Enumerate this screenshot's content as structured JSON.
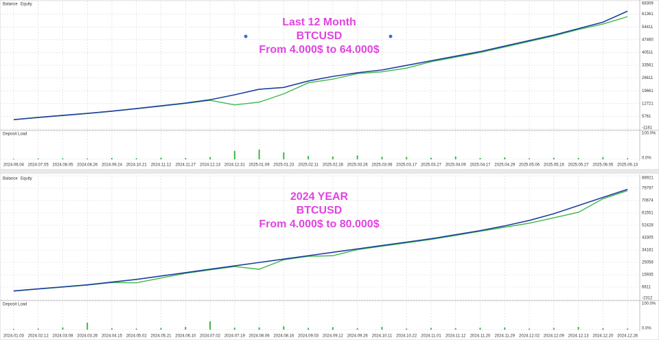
{
  "chart_data": [
    {
      "type": "line",
      "legend": [
        "Balance",
        "Equity"
      ],
      "sub_title": "Deposit Load",
      "annotations": [
        "Last 12 Month",
        "BTCUSD",
        "From 4.000$ to 64.000$"
      ],
      "categories": [
        "2024.06.04",
        "2024.07.05",
        "2024.08.05",
        "2024.08.26",
        "2024.09.24",
        "2024.10.21",
        "2024.11.12",
        "2024.11.27",
        "2024.12.13",
        "2024.12.31",
        "2025.01.09",
        "2025.01.23",
        "2025.02.11",
        "2025.02.28",
        "2025.03.26",
        "2025.03.06",
        "2025.03.17",
        "2025.03.27",
        "2025.04.09",
        "2025.04.17",
        "2025.04.29",
        "2025.05.06",
        "2025.05.16",
        "2025.05.27",
        "2025.06.05",
        "2025.06.13"
      ],
      "series": [
        {
          "name": "Balance",
          "color": "#1c3f9c",
          "values": [
            4000,
            5200,
            6300,
            7400,
            8600,
            10000,
            11500,
            13000,
            14800,
            17500,
            20500,
            21500,
            25000,
            27500,
            29500,
            31000,
            33500,
            36000,
            38500,
            41000,
            44000,
            47000,
            50000,
            53500,
            57000,
            63000
          ]
        },
        {
          "name": "Equity",
          "color": "#3db54a",
          "values": [
            3900,
            5100,
            6200,
            7300,
            8500,
            9900,
            11300,
            12800,
            14500,
            12000,
            13500,
            18000,
            24000,
            26000,
            29000,
            30000,
            32000,
            35500,
            38000,
            40500,
            43500,
            46500,
            49500,
            53000,
            56000,
            60000
          ]
        }
      ],
      "ylim": [
        -1181,
        68309
      ],
      "yticks": [
        -1181,
        5761,
        12721,
        19661,
        26611,
        33561,
        40511,
        47460,
        54411,
        61361,
        68309
      ],
      "load": {
        "color": "#3db54a",
        "values": [
          2,
          3,
          4,
          3,
          5,
          4,
          6,
          5,
          8,
          30,
          35,
          25,
          12,
          10,
          14,
          9,
          8,
          6,
          10,
          5,
          7,
          4,
          6,
          5,
          8,
          4
        ],
        "ylim": [
          0,
          100
        ],
        "yticks": [
          {
            "value": 0,
            "label": "0.0%"
          },
          {
            "value": 100,
            "label": "100.0%"
          }
        ]
      }
    },
    {
      "type": "line",
      "legend": [
        "Balance",
        "Equity"
      ],
      "sub_title": "Deposit Load",
      "annotations": [
        "2024 YEAR",
        "BTCUSD",
        "From 4.000$ to 80.000$"
      ],
      "categories": [
        "2024.01.03",
        "2024.02.12",
        "2024.03.08",
        "2024.03.26",
        "2024.04.15",
        "2024.05.02",
        "2024.05.21",
        "2024.06.10",
        "2024.07.02",
        "2024.07.19",
        "2024.08.06",
        "2024.08.16",
        "2024.09.03",
        "2024.09.12",
        "2024.09.26",
        "2024.10.11",
        "2024.10.22",
        "2024.11.01",
        "2024.11.12",
        "2024.11.20",
        "2024.11.29",
        "2024.12.02",
        "2024.12.09",
        "2024.12.13",
        "2024.12.20",
        "2024.12.26"
      ],
      "series": [
        {
          "name": "Balance",
          "color": "#1c3f9c",
          "values": [
            4000,
            5500,
            7000,
            8500,
            10500,
            12500,
            15000,
            17500,
            20000,
            22500,
            25000,
            27500,
            30000,
            32500,
            35000,
            37500,
            40000,
            42500,
            45500,
            48500,
            52000,
            56000,
            61000,
            67000,
            73000,
            79000
          ]
        },
        {
          "name": "Equity",
          "color": "#3db54a",
          "values": [
            3900,
            5400,
            6800,
            8300,
            10200,
            10000,
            13500,
            17000,
            19500,
            22000,
            20000,
            27000,
            29500,
            30000,
            34500,
            37000,
            39500,
            42000,
            45000,
            48000,
            51000,
            54000,
            58000,
            62000,
            72000,
            78000
          ]
        }
      ],
      "ylim": [
        -2312,
        88921
      ],
      "yticks": [
        -2312,
        6811,
        15935,
        25058,
        34181,
        43305,
        52428,
        61551,
        70674,
        79797,
        88921
      ],
      "load": {
        "color": "#3db54a",
        "values": [
          3,
          4,
          8,
          25,
          5,
          4,
          6,
          10,
          30,
          7,
          8,
          12,
          6,
          9,
          5,
          10,
          4,
          6,
          5,
          7,
          8,
          4,
          6,
          10,
          5,
          4
        ],
        "ylim": [
          0,
          100
        ],
        "yticks": [
          {
            "value": 0,
            "label": "0.0%"
          },
          {
            "value": 100,
            "label": "100.0%"
          }
        ]
      }
    }
  ]
}
